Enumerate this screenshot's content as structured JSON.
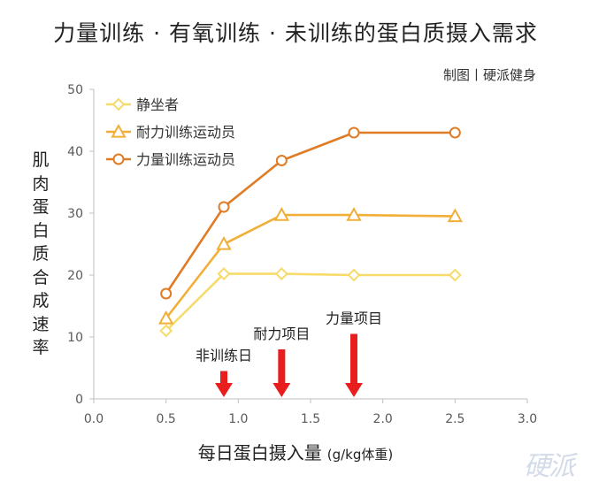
{
  "title": "力量训练 · 有氧训练 · 未训练的蛋白质摄入需求",
  "credit": "制图丨硬派健身",
  "watermark": "硬派",
  "chart_data": {
    "type": "line",
    "ylabel": "肌肉蛋白质合成速率",
    "xlabel": "每日蛋白摄入量",
    "xlabel_unit": "(g/kg体重)",
    "xlim": [
      0.0,
      3.0
    ],
    "ylim": [
      0,
      50
    ],
    "x_ticks": [
      "0.0",
      "0.5",
      "1.0",
      "1.5",
      "2.0",
      "2.5",
      "3.0"
    ],
    "y_ticks": [
      "0",
      "10",
      "20",
      "30",
      "40",
      "50"
    ],
    "grid": false,
    "legend_position": "top-left",
    "series": [
      {
        "name": "静坐者",
        "color": "#F7DB6A",
        "marker": "diamond",
        "x": [
          0.5,
          0.9,
          1.3,
          1.8,
          2.5
        ],
        "y": [
          11,
          20.2,
          20.2,
          20,
          20
        ]
      },
      {
        "name": "耐力训练运动员",
        "color": "#F1AF37",
        "marker": "triangle",
        "x": [
          0.5,
          0.9,
          1.3,
          1.8,
          2.5
        ],
        "y": [
          13,
          25,
          29.7,
          29.7,
          29.5
        ]
      },
      {
        "name": "力量训练运动员",
        "color": "#E07C26",
        "marker": "circle",
        "x": [
          0.5,
          0.9,
          1.3,
          1.8,
          2.5
        ],
        "y": [
          17,
          31,
          38.5,
          43,
          43
        ]
      }
    ],
    "annotations": [
      {
        "text": "非训练日",
        "x": 0.9,
        "arrow_top": 4.5,
        "color": "#E81D1D"
      },
      {
        "text": "耐力项目",
        "x": 1.3,
        "arrow_top": 8,
        "color": "#E81D1D"
      },
      {
        "text": "力量项目",
        "x": 1.8,
        "arrow_top": 10.5,
        "color": "#E81D1D"
      }
    ]
  }
}
